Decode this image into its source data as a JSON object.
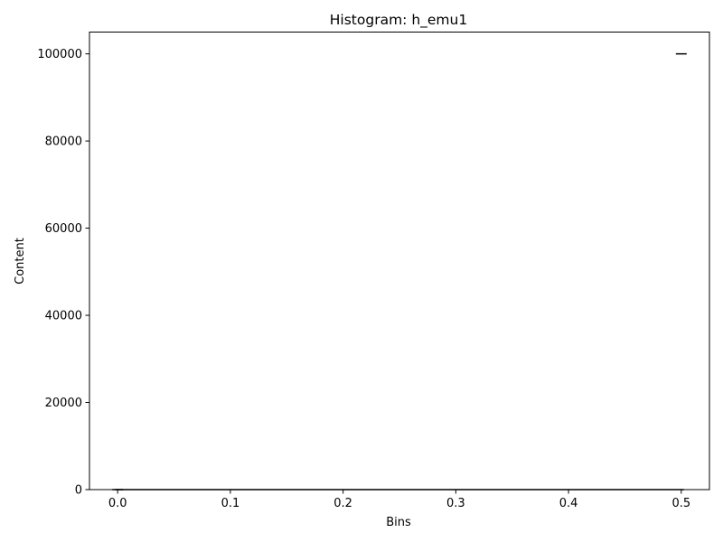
{
  "chart_data": {
    "type": "line",
    "title": "Histogram: h_emu1",
    "xlabel": "Bins",
    "ylabel": "Content",
    "x": [
      0.0,
      0.5
    ],
    "series": [
      {
        "values": [
          0,
          100000
        ],
        "color": "#000000",
        "marker": "hline"
      }
    ],
    "xlim": [
      -0.025,
      0.525
    ],
    "ylim": [
      0,
      105000
    ],
    "xticks": [
      0.0,
      0.1,
      0.2,
      0.3,
      0.4,
      0.5
    ],
    "xtick_labels": [
      "0.0",
      "0.1",
      "0.2",
      "0.3",
      "0.4",
      "0.5"
    ],
    "yticks": [
      0,
      20000,
      40000,
      60000,
      80000,
      100000
    ],
    "ytick_labels": [
      "0",
      "20000",
      "40000",
      "60000",
      "80000",
      "100000"
    ],
    "grid": false,
    "legend": false
  }
}
